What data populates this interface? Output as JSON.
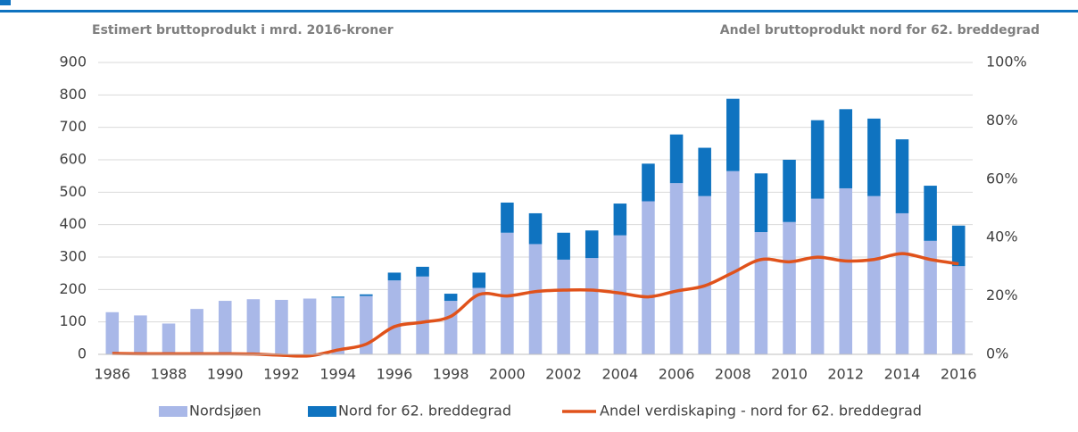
{
  "chart_data": {
    "type": "bar",
    "subtitle_left": "Estimert bruttoprodukt i mrd. 2016-kroner",
    "subtitle_right": "Andel bruttoprodukt nord for 62. breddegrad",
    "categories": [
      "1986",
      null,
      "1988",
      null,
      "1990",
      null,
      "1992",
      null,
      "1994",
      null,
      "1996",
      null,
      "1998",
      null,
      "2000",
      null,
      "2002",
      null,
      "2004",
      null,
      "2006",
      null,
      "2008",
      null,
      "2010",
      null,
      "2012",
      null,
      "2014",
      null,
      "2016"
    ],
    "series": [
      {
        "name": "Nordsjøen",
        "color": "#a9b8e8",
        "stack": true,
        "values": [
          130,
          120,
          95,
          140,
          165,
          170,
          168,
          172,
          175,
          180,
          228,
          240,
          165,
          205,
          375,
          340,
          292,
          297,
          367,
          472,
          528,
          488,
          565,
          377,
          408,
          480,
          512,
          488,
          435,
          350,
          272
        ]
      },
      {
        "name": "Nord for 62. breddegrad",
        "color": "#0f73c0",
        "stack": true,
        "values": [
          0,
          0,
          0,
          0,
          0,
          0,
          0,
          0,
          3,
          5,
          24,
          30,
          22,
          47,
          93,
          95,
          83,
          85,
          98,
          116,
          150,
          149,
          223,
          181,
          192,
          242,
          244,
          239,
          228,
          170,
          125
        ]
      },
      {
        "name": "Andel verdiskaping - nord for 62. breddegrad",
        "color": "#e0521b",
        "type": "line",
        "axis": "y2",
        "values": [
          0.3,
          0.2,
          0.2,
          0.2,
          0.2,
          0.1,
          -0.3,
          -0.5,
          1.5,
          3.5,
          9.5,
          11,
          13,
          20.5,
          20,
          21.5,
          22,
          22,
          21,
          19.7,
          21.7,
          23.5,
          28,
          32.5,
          31.7,
          33.3,
          32,
          32.5,
          34.5,
          32.5,
          31
        ]
      }
    ],
    "ylim": [
      0,
      900
    ],
    "yticks": [
      0,
      100,
      200,
      300,
      400,
      500,
      600,
      700,
      800,
      900
    ],
    "y2lim": [
      0,
      100
    ],
    "y2ticks": [
      {
        "value": 0,
        "label": "0%"
      },
      {
        "value": 20,
        "label": "20%"
      },
      {
        "value": 40,
        "label": "40%"
      },
      {
        "value": 60,
        "label": "60%"
      },
      {
        "value": 80,
        "label": "80%"
      },
      {
        "value": 100,
        "label": "100%"
      }
    ],
    "grid": true,
    "legend": "bottom"
  }
}
